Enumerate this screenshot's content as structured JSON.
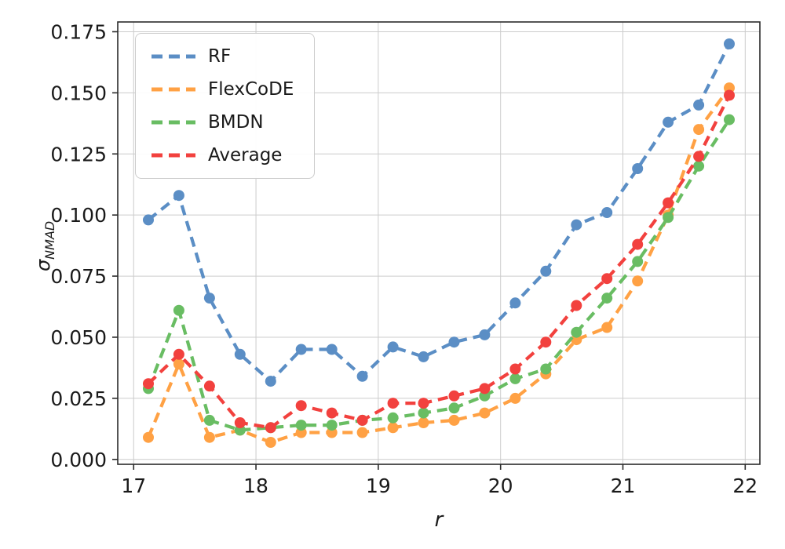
{
  "figure": {
    "background": "#ffffff",
    "xlabel": "r",
    "ylabel_main": "σ",
    "ylabel_sub": "NMAD"
  },
  "chart_data": {
    "type": "line",
    "title": "",
    "xlabel": "r",
    "ylabel": "σ_NMAD",
    "xlim": [
      16.87,
      22.12
    ],
    "ylim": [
      -0.002,
      0.179
    ],
    "xticks": [
      17,
      18,
      19,
      20,
      21,
      22
    ],
    "yticks": [
      0.0,
      0.025,
      0.05,
      0.075,
      0.1,
      0.125,
      0.15,
      0.175
    ],
    "ytick_decimals": 3,
    "grid": true,
    "grid_color": "#cccccc",
    "frame_color": "#2b2b2b",
    "tick_label_color": "#1a1a1a",
    "legend_position": "upper left",
    "line_style": "dashed",
    "marker": "circle",
    "x": [
      17.12,
      17.37,
      17.62,
      17.87,
      18.12,
      18.37,
      18.62,
      18.87,
      19.12,
      19.37,
      19.62,
      19.87,
      20.12,
      20.37,
      20.62,
      20.87,
      21.12,
      21.37,
      21.62,
      21.87
    ],
    "series": [
      {
        "name": "RF",
        "color": "#5b8ec5",
        "values": [
          0.098,
          0.108,
          0.066,
          0.043,
          0.032,
          0.045,
          0.045,
          0.034,
          0.046,
          0.042,
          0.048,
          0.051,
          0.064,
          0.077,
          0.096,
          0.101,
          0.119,
          0.138,
          0.145,
          0.17
        ]
      },
      {
        "name": "FlexCoDE",
        "color": "#ffa144",
        "values": [
          0.009,
          0.039,
          0.009,
          0.012,
          0.007,
          0.011,
          0.011,
          0.011,
          0.013,
          0.015,
          0.016,
          0.019,
          0.025,
          0.035,
          0.049,
          0.054,
          0.073,
          0.1,
          0.135,
          0.152
        ]
      },
      {
        "name": "BMDN",
        "color": "#69bd63",
        "values": [
          0.029,
          0.061,
          0.016,
          0.012,
          0.013,
          0.014,
          0.014,
          0.016,
          0.017,
          0.019,
          0.021,
          0.026,
          0.033,
          0.037,
          0.052,
          0.066,
          0.081,
          0.099,
          0.12,
          0.139
        ]
      },
      {
        "name": "Average",
        "color": "#f2413e",
        "values": [
          0.031,
          0.043,
          0.03,
          0.015,
          0.013,
          0.022,
          0.019,
          0.016,
          0.023,
          0.023,
          0.026,
          0.029,
          0.037,
          0.048,
          0.063,
          0.074,
          0.088,
          0.105,
          0.124,
          0.149
        ]
      }
    ]
  }
}
